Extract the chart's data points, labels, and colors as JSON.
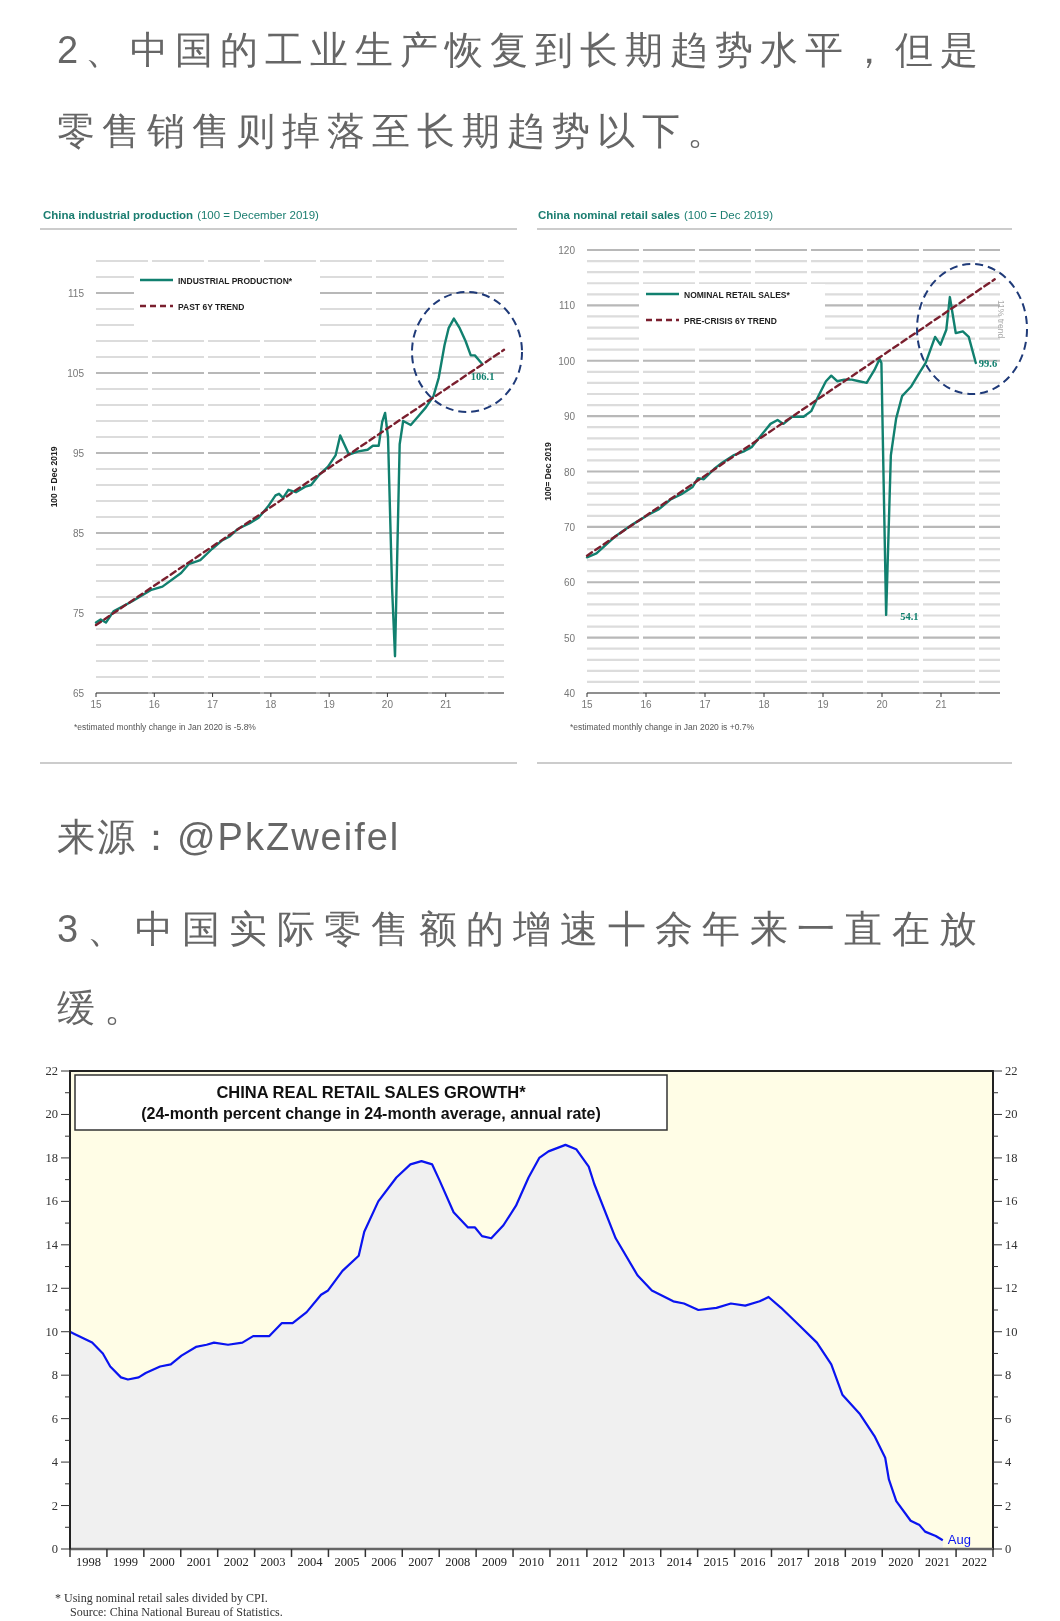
{
  "chart_data": [
    {
      "type": "other",
      "title": "2、中国的工业生产恢复到长期趋势水平，但是零售销售则掉落至长期趋势以下。"
    },
    {
      "type": "line",
      "title": "China industrial production",
      "subtitle": "(100 = December 2019)",
      "ylabel": "100 = Dec 2019",
      "x": [
        2015.0,
        2015.08,
        2015.17,
        2015.3,
        2015.63,
        2015.95,
        2016.14,
        2016.46,
        2016.59,
        2016.79,
        2016.99,
        2017.17,
        2017.3,
        2017.43,
        2017.63,
        2017.79,
        2017.95,
        2018.08,
        2018.14,
        2018.21,
        2018.3,
        2018.43,
        2018.59,
        2018.69,
        2018.82,
        2018.98,
        2019.11,
        2019.19,
        2019.34,
        2019.5,
        2019.66,
        2019.75,
        2019.85,
        2019.91,
        2019.96,
        2020.01,
        2020.08,
        2020.13,
        2020.21,
        2020.27,
        2020.4,
        2020.53,
        2020.66,
        2020.79,
        2020.88,
        2020.98,
        2021.05,
        2021.14,
        2021.24,
        2021.34,
        2021.43,
        2021.5,
        2021.63
      ],
      "series": [
        {
          "name": "INDUSTRIAL PRODUCTION*",
          "color": "#11806f",
          "values": [
            73.8,
            74.2,
            73.8,
            75.2,
            76.5,
            77.9,
            78.3,
            80.0,
            81.1,
            81.6,
            83.0,
            84.1,
            84.6,
            85.5,
            86.2,
            86.9,
            88.3,
            89.7,
            89.9,
            89.4,
            90.4,
            90.1,
            90.8,
            91.0,
            92.2,
            93.3,
            94.7,
            97.2,
            94.8,
            95.2,
            95.4,
            95.9,
            95.9,
            98.9,
            100.0,
            97.0,
            78.1,
            69.6,
            96.1,
            99.0,
            98.5,
            99.6,
            100.7,
            102.1,
            104.4,
            108.5,
            110.6,
            111.8,
            110.6,
            109.0,
            107.2,
            107.2,
            106.1
          ]
        },
        {
          "name": "PAST 6Y TREND",
          "color": "#7a1f2e",
          "line_style": "dashed",
          "x": [
            2015.0,
            2022.0
          ],
          "values": [
            73.5,
            107.9
          ]
        }
      ],
      "xlim": [
        2015,
        2022
      ],
      "xticks": [
        {
          "value": 2015,
          "label": "15"
        },
        {
          "value": 2016,
          "label": "16"
        },
        {
          "value": 2017,
          "label": "17"
        },
        {
          "value": 2018,
          "label": "18"
        },
        {
          "value": 2019,
          "label": "19"
        },
        {
          "value": 2020,
          "label": "20"
        },
        {
          "value": 2021,
          "label": "21"
        }
      ],
      "ylim": [
        65,
        119
      ],
      "yticks": [
        65,
        {
          "value": 67,
          "label": null
        },
        {
          "value": 69,
          "label": null
        },
        {
          "value": 71,
          "label": null
        },
        {
          "value": 73,
          "label": null
        },
        75,
        {
          "value": 77,
          "label": null
        },
        {
          "value": 79,
          "label": null
        },
        {
          "value": 81,
          "label": null
        },
        {
          "value": 83,
          "label": null
        },
        85,
        {
          "value": 87,
          "label": null
        },
        {
          "value": 89,
          "label": null
        },
        {
          "value": 91,
          "label": null
        },
        {
          "value": 93,
          "label": null
        },
        95,
        {
          "value": 97,
          "label": null
        },
        {
          "value": 99,
          "label": null
        },
        {
          "value": 101,
          "label": null
        },
        {
          "value": 103,
          "label": null
        },
        105,
        {
          "value": 107,
          "label": null
        },
        {
          "value": 109,
          "label": null
        },
        {
          "value": 111,
          "label": null
        },
        {
          "value": 113,
          "label": null
        },
        115,
        {
          "value": 117,
          "label": null
        },
        {
          "value": 119,
          "label": null
        }
      ],
      "grid": "y",
      "legend": "top left",
      "annotations": [
        {
          "text": "106.1",
          "x": 2021.63,
          "y": 106.1
        },
        "*estimated monthly change in Jan 2020 is -5.8%"
      ]
    },
    {
      "type": "line",
      "title": "China nominal retail sales",
      "subtitle": "(100 = Dec 2019)",
      "ylabel": "100= Dec 2019",
      "x": [
        2015.0,
        2015.16,
        2015.47,
        2015.78,
        2016.04,
        2016.22,
        2016.41,
        2016.6,
        2016.79,
        2016.88,
        2016.98,
        2017.17,
        2017.29,
        2017.48,
        2017.67,
        2017.79,
        2017.98,
        2018.11,
        2018.23,
        2018.33,
        2018.48,
        2018.67,
        2018.8,
        2018.92,
        2019.05,
        2019.14,
        2019.24,
        2019.36,
        2019.49,
        2019.61,
        2019.74,
        2019.87,
        2019.96,
        2019.99,
        2020.07,
        2020.15,
        2020.24,
        2020.34,
        2020.49,
        2020.62,
        2020.74,
        2020.9,
        2020.99,
        2021.09,
        2021.15,
        2021.25,
        2021.37,
        2021.47,
        2021.59
      ],
      "series": [
        {
          "name": "NOMINAL RETAIL SALES*",
          "color": "#11806f",
          "values": [
            64.5,
            65.2,
            68.2,
            70.5,
            72.2,
            73.2,
            74.9,
            75.9,
            77.2,
            78.8,
            78.6,
            80.6,
            81.6,
            82.9,
            83.7,
            84.4,
            86.9,
            88.6,
            89.3,
            88.6,
            89.9,
            89.9,
            90.9,
            93.6,
            96.3,
            97.3,
            96.3,
            96.6,
            96.6,
            96.3,
            96.0,
            98.3,
            100.3,
            99.6,
            54.1,
            82.9,
            89.6,
            93.6,
            95.3,
            97.6,
            99.6,
            104.3,
            102.9,
            105.6,
            111.5,
            105.0,
            105.3,
            104.3,
            99.6
          ]
        },
        {
          "name": "PRE-CRISIS 6Y TREND",
          "color": "#7a1f2e",
          "line_style": "dashed",
          "x": [
            2015.0,
            2021.91
          ],
          "values": [
            64.8,
            114.7
          ]
        }
      ],
      "xlim": [
        2015,
        2022
      ],
      "xticks": [
        {
          "value": 2015,
          "label": "15"
        },
        {
          "value": 2016,
          "label": "16"
        },
        {
          "value": 2017,
          "label": "17"
        },
        {
          "value": 2018,
          "label": "18"
        },
        {
          "value": 2019,
          "label": "19"
        },
        {
          "value": 2020,
          "label": "20"
        },
        {
          "value": 2021,
          "label": "21"
        }
      ],
      "ylim": [
        40,
        120
      ],
      "yticks": [
        40,
        {
          "value": 42,
          "label": null
        },
        {
          "value": 44,
          "label": null
        },
        {
          "value": 46,
          "label": null
        },
        {
          "value": 48,
          "label": null
        },
        50,
        {
          "value": 52,
          "label": null
        },
        {
          "value": 54,
          "label": null
        },
        {
          "value": 56,
          "label": null
        },
        {
          "value": 58,
          "label": null
        },
        60,
        {
          "value": 62,
          "label": null
        },
        {
          "value": 64,
          "label": null
        },
        {
          "value": 66,
          "label": null
        },
        {
          "value": 68,
          "label": null
        },
        70,
        {
          "value": 72,
          "label": null
        },
        {
          "value": 74,
          "label": null
        },
        {
          "value": 76,
          "label": null
        },
        {
          "value": 78,
          "label": null
        },
        80,
        {
          "value": 82,
          "label": null
        },
        {
          "value": 84,
          "label": null
        },
        {
          "value": 86,
          "label": null
        },
        {
          "value": 88,
          "label": null
        },
        90,
        {
          "value": 92,
          "label": null
        },
        {
          "value": 94,
          "label": null
        },
        {
          "value": 96,
          "label": null
        },
        {
          "value": 98,
          "label": null
        },
        100,
        {
          "value": 102,
          "label": null
        },
        {
          "value": 104,
          "label": null
        },
        {
          "value": 106,
          "label": null
        },
        {
          "value": 108,
          "label": null
        },
        110,
        {
          "value": 112,
          "label": null
        },
        {
          "value": 114,
          "label": null
        },
        {
          "value": 116,
          "label": null
        },
        {
          "value": 118,
          "label": null
        },
        120
      ],
      "grid": "y",
      "legend": "top left",
      "annotations": [
        {
          "text": "54.1",
          "x": 2020.07,
          "y": 54.1
        },
        {
          "text": "99.6",
          "x": 2021.59,
          "y": 99.6
        },
        "11% trend",
        "*estimated monthly change in Jan 2020 is  +0.7%",
        "来源：@PkZweifel"
      ]
    },
    {
      "type": "other",
      "title": "3、中国实际零售额的增速十余年来一直在放缓。"
    },
    {
      "type": "area",
      "title": "CHINA REAL RETAIL SALES GROWTH*",
      "subtitle": "(24-month percent change in 24-month average, annual rate)",
      "x": [
        1998.0,
        1998.12,
        1998.6,
        1998.89,
        1999.09,
        1999.38,
        1999.57,
        1999.86,
        2000.05,
        2000.44,
        2000.73,
        2001.02,
        2001.41,
        2001.7,
        2001.9,
        2002.28,
        2002.67,
        2002.96,
        2003.16,
        2003.4,
        2003.74,
        2004.03,
        2004.41,
        2004.8,
        2004.99,
        2005.38,
        2005.82,
        2005.97,
        2006.35,
        2006.84,
        2007.22,
        2007.52,
        2007.81,
        2008.0,
        2008.39,
        2008.78,
        2008.97,
        2009.16,
        2009.41,
        2009.74,
        2010.08,
        2010.42,
        2010.71,
        2010.96,
        2011.42,
        2011.71,
        2012.05,
        2012.2,
        2012.78,
        2013.37,
        2013.76,
        2014.34,
        2014.63,
        2015.02,
        2015.51,
        2015.9,
        2016.29,
        2016.68,
        2016.92,
        2017.26,
        2017.75,
        2018.23,
        2018.62,
        2018.92,
        2019.4,
        2019.79,
        2020.08,
        2020.18,
        2020.38,
        2020.77,
        2021.01,
        2021.16,
        2021.45,
        2021.64
      ],
      "series": [
        {
          "color": "#0a14f0",
          "values": [
            10.0,
            9.9,
            9.5,
            9.0,
            8.4,
            7.9,
            7.8,
            7.9,
            8.1,
            8.4,
            8.5,
            8.9,
            9.3,
            9.4,
            9.5,
            9.4,
            9.5,
            9.8,
            9.8,
            9.8,
            10.4,
            10.4,
            10.9,
            11.7,
            11.9,
            12.8,
            13.5,
            14.6,
            16.0,
            17.1,
            17.7,
            17.85,
            17.7,
            17.0,
            15.5,
            14.8,
            14.8,
            14.4,
            14.3,
            14.9,
            15.8,
            17.1,
            18.0,
            18.3,
            18.6,
            18.4,
            17.6,
            16.8,
            14.3,
            12.6,
            11.9,
            11.4,
            11.3,
            11.0,
            11.1,
            11.3,
            11.2,
            11.4,
            11.6,
            11.1,
            10.3,
            9.5,
            8.5,
            7.1,
            6.2,
            5.2,
            4.2,
            3.2,
            2.2,
            1.3,
            1.1,
            0.8,
            0.6,
            0.4
          ]
        }
      ],
      "xlim": [
        1998,
        2023
      ],
      "xticks": [
        {
          "value": 1998,
          "label": null
        },
        {
          "value": 1999,
          "label": null
        },
        {
          "value": 2000,
          "label": null
        },
        {
          "value": 2001,
          "label": null
        },
        {
          "value": 2002,
          "label": null
        },
        {
          "value": 2003,
          "label": null
        },
        {
          "value": 2004,
          "label": null
        },
        {
          "value": 2005,
          "label": null
        },
        {
          "value": 2006,
          "label": null
        },
        {
          "value": 2007,
          "label": null
        },
        {
          "value": 2008,
          "label": null
        },
        {
          "value": 2009,
          "label": null
        },
        {
          "value": 2010,
          "label": null
        },
        {
          "value": 2011,
          "label": null
        },
        {
          "value": 2012,
          "label": null
        },
        {
          "value": 2013,
          "label": null
        },
        {
          "value": 2014,
          "label": null
        },
        {
          "value": 2015,
          "label": null
        },
        {
          "value": 2016,
          "label": null
        },
        {
          "value": 2017,
          "label": null
        },
        {
          "value": 2018,
          "label": null
        },
        {
          "value": 2019,
          "label": null
        },
        {
          "value": 2020,
          "label": null
        },
        {
          "value": 2021,
          "label": null
        },
        {
          "value": 2022,
          "label": null
        },
        {
          "value": 2023,
          "label": null
        },
        {
          "value": 1998.5,
          "label": "1998"
        },
        {
          "value": 1999.5,
          "label": "1999"
        },
        {
          "value": 2000.5,
          "label": "2000"
        },
        {
          "value": 2001.5,
          "label": "2001"
        },
        {
          "value": 2002.5,
          "label": "2002"
        },
        {
          "value": 2003.5,
          "label": "2003"
        },
        {
          "value": 2004.5,
          "label": "2004"
        },
        {
          "value": 2005.5,
          "label": "2005"
        },
        {
          "value": 2006.5,
          "label": "2006"
        },
        {
          "value": 2007.5,
          "label": "2007"
        },
        {
          "value": 2008.5,
          "label": "2008"
        },
        {
          "value": 2009.5,
          "label": "2009"
        },
        {
          "value": 2010.5,
          "label": "2010"
        },
        {
          "value": 2011.5,
          "label": "2011"
        },
        {
          "value": 2012.5,
          "label": "2012"
        },
        {
          "value": 2013.5,
          "label": "2013"
        },
        {
          "value": 2014.5,
          "label": "2014"
        },
        {
          "value": 2015.5,
          "label": "2015"
        },
        {
          "value": 2016.5,
          "label": "2016"
        },
        {
          "value": 2017.5,
          "label": "2017"
        },
        {
          "value": 2018.5,
          "label": "2018"
        },
        {
          "value": 2019.5,
          "label": "2019"
        },
        {
          "value": 2020.5,
          "label": "2020"
        },
        {
          "value": 2021.5,
          "label": "2021"
        },
        {
          "value": 2022.5,
          "label": "2022"
        }
      ],
      "ylim": [
        0,
        22
      ],
      "yticks": [
        0,
        {
          "value": 1,
          "label": null
        },
        2,
        {
          "value": 3,
          "label": null
        },
        4,
        {
          "value": 5,
          "label": null
        },
        6,
        {
          "value": 7,
          "label": null
        },
        8,
        {
          "value": 9,
          "label": null
        },
        10,
        {
          "value": 11,
          "label": null
        },
        12,
        {
          "value": 13,
          "label": null
        },
        14,
        {
          "value": 15,
          "label": null
        },
        16,
        {
          "value": 17,
          "label": null
        },
        18,
        {
          "value": 19,
          "label": null
        },
        20,
        {
          "value": 21,
          "label": null
        },
        22
      ],
      "y2lim": [
        0,
        22
      ],
      "y2ticks": [
        0,
        {
          "value": 1,
          "label": null
        },
        2,
        {
          "value": 3,
          "label": null
        },
        4,
        {
          "value": 5,
          "label": null
        },
        6,
        {
          "value": 7,
          "label": null
        },
        8,
        {
          "value": 9,
          "label": null
        },
        10,
        {
          "value": 11,
          "label": null
        },
        12,
        {
          "value": 13,
          "label": null
        },
        14,
        {
          "value": 15,
          "label": null
        },
        16,
        {
          "value": 17,
          "label": null
        },
        18,
        {
          "value": 19,
          "label": null
        },
        20,
        {
          "value": 21,
          "label": null
        },
        22
      ],
      "annotations": [
        {
          "text": "Aug",
          "x": 2021.64,
          "y": 0.4
        },
        "* Using nominal retail sales divided by CPI.",
        "Source: China National Bureau of Statistics."
      ]
    }
  ]
}
